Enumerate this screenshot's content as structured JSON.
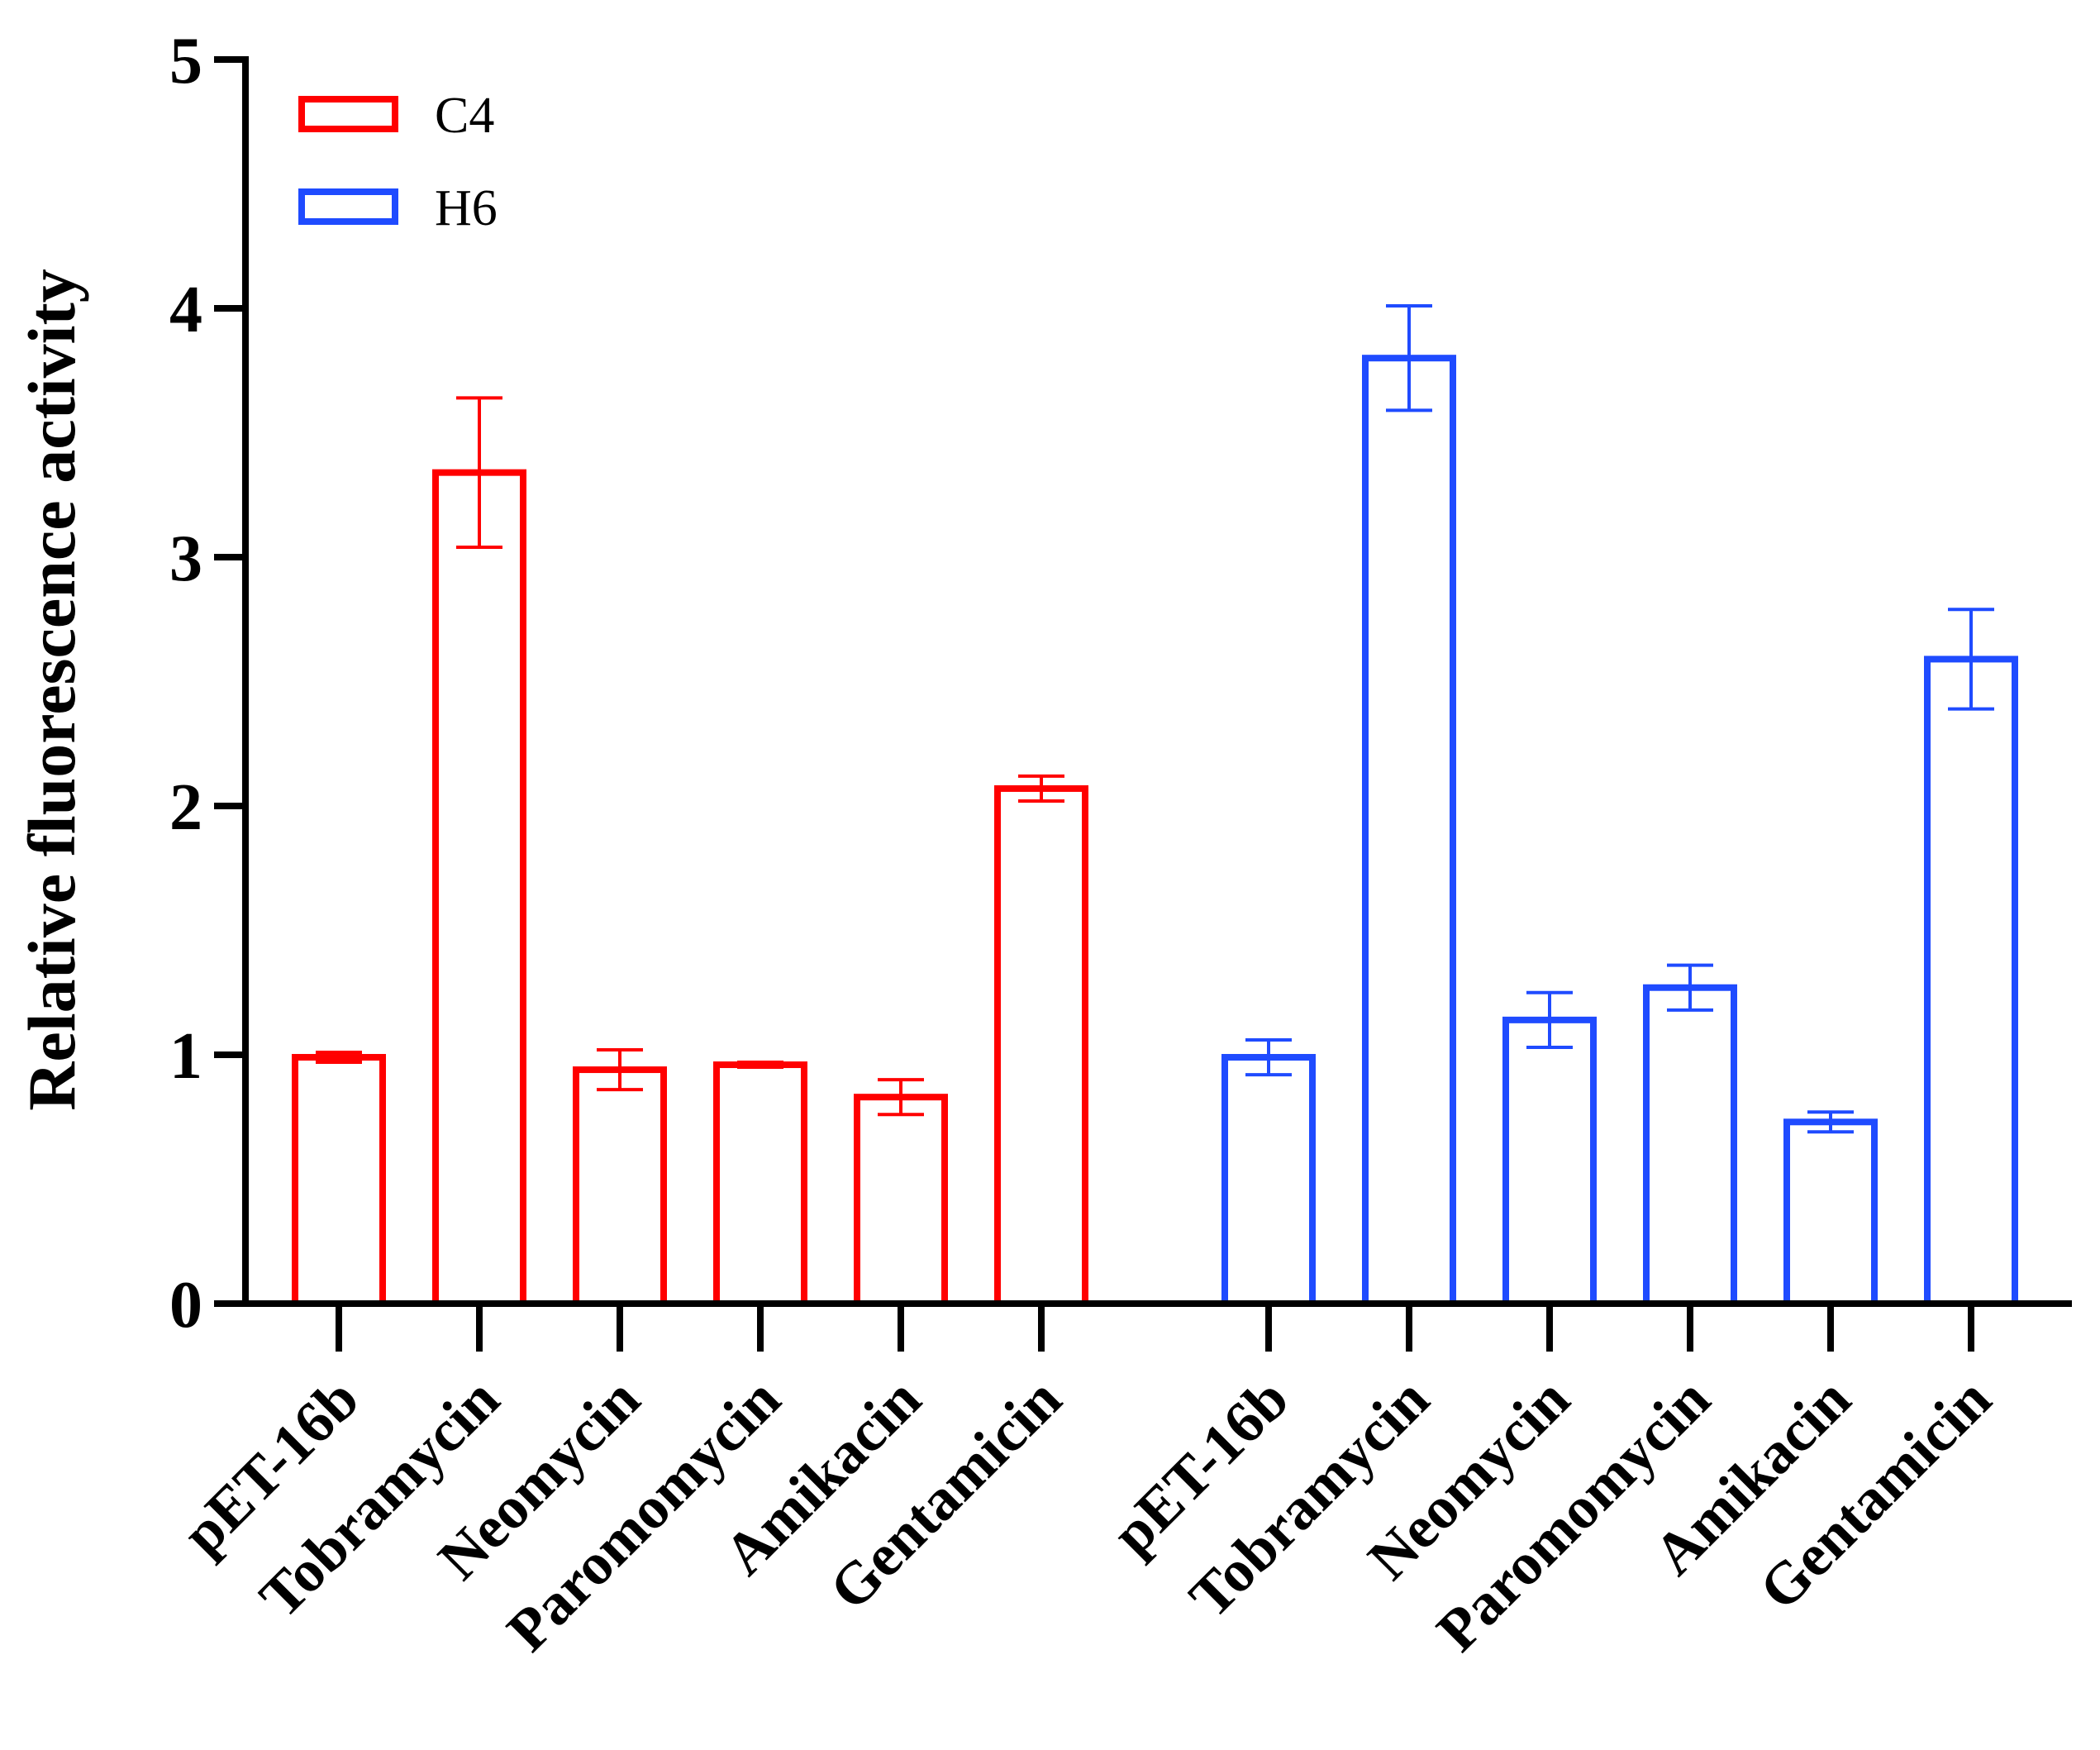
{
  "chart_data": {
    "type": "bar",
    "title": "",
    "xlabel": "",
    "ylabel": "Relative fluorescence activity",
    "ylim": [
      0,
      5
    ],
    "yticks": [
      "0",
      "1",
      "2",
      "3",
      "4",
      "5"
    ],
    "grid": false,
    "legend_position": "top-left",
    "series": [
      {
        "name": "C4",
        "color": "#ff0000",
        "categories": [
          "pET-16b",
          "Tobramycin",
          "Neomycin",
          "Paromomycin",
          "Amikacin",
          "Gentamicin"
        ],
        "values": [
          0.99,
          3.34,
          0.94,
          0.96,
          0.83,
          2.07
        ],
        "errors": [
          0.02,
          0.3,
          0.08,
          0.01,
          0.07,
          0.05
        ]
      },
      {
        "name": "H6",
        "color": "#1f4bff",
        "categories": [
          "pET-16b",
          "Tobramycin",
          "Neomycin",
          "Paromomycin",
          "Amikacin",
          "Gentamicin"
        ],
        "values": [
          0.99,
          3.8,
          1.14,
          1.27,
          0.73,
          2.59
        ],
        "errors": [
          0.07,
          0.21,
          0.11,
          0.09,
          0.04,
          0.2
        ]
      }
    ]
  }
}
